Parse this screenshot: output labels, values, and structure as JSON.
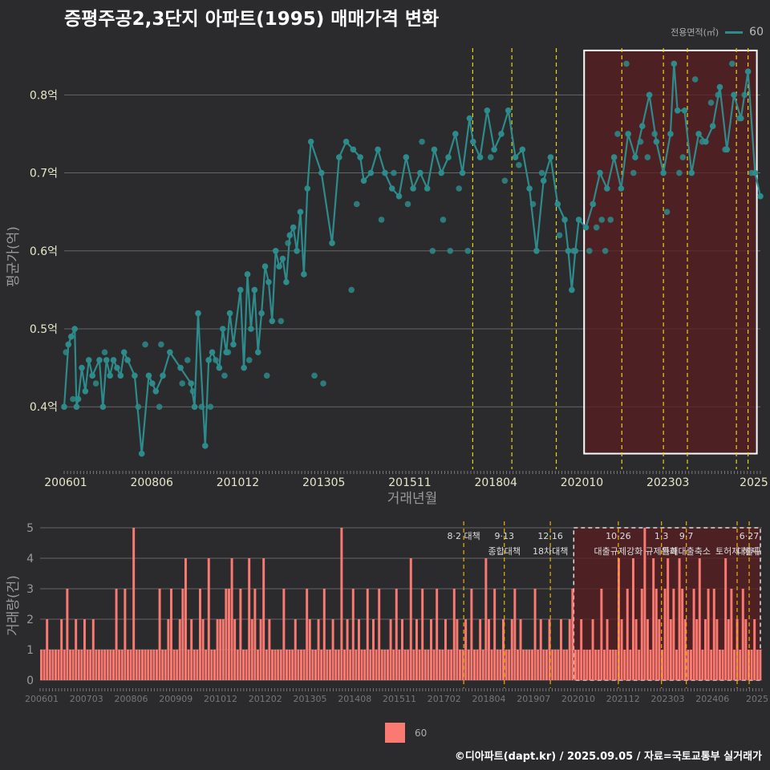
{
  "title": "증평주공2,3단지 아파트(1995) 매매가격 변화",
  "legend": {
    "title": "전용면적(㎡)",
    "label": "60"
  },
  "footer": "©디아파트(dapt.kr) / 2025.09.05 / 자료=국토교통부 실거래가",
  "colors": {
    "background": "#2b2b2d",
    "line": "#2e8b8b",
    "bar": "#fa7a72",
    "policy": "#e8d21a",
    "highlight": "#5a1f22"
  },
  "chart_data": [
    {
      "type": "line",
      "title": "증평주공2,3단지 아파트(1995) 매매가격 변화",
      "xlabel": "거래년월",
      "ylabel": "평균가(억)",
      "x_ticks": [
        "200601",
        "200806",
        "201012",
        "201305",
        "201511",
        "201804",
        "202010",
        "202303",
        "2025"
      ],
      "y_ticks": [
        "0.4억",
        "0.5억",
        "0.6억",
        "0.7억",
        "0.8억"
      ],
      "ylim": [
        0.32,
        0.86
      ],
      "x_range": [
        2006.0,
        2025.75
      ],
      "highlight_range": [
        2020.75,
        2025.65
      ],
      "policy_lines": [
        2017.59,
        2018.7,
        2019.96,
        2021.82,
        2023.0,
        2023.68,
        2025.07,
        2025.4
      ],
      "series": [
        {
          "name": "60",
          "x": [
            2006.0,
            2006.12,
            2006.2,
            2006.3,
            2006.35,
            2006.4,
            2006.5,
            2006.6,
            2006.7,
            2006.8,
            2007.0,
            2007.1,
            2007.2,
            2007.3,
            2007.4,
            2007.5,
            2007.6,
            2007.7,
            2007.8,
            2008.0,
            2008.2,
            2008.4,
            2008.5,
            2008.6,
            2008.8,
            2009.0,
            2009.3,
            2009.6,
            2009.7,
            2009.8,
            2010.0,
            2010.1,
            2010.2,
            2010.4,
            2010.5,
            2010.6,
            2010.7,
            2010.8,
            2011.0,
            2011.1,
            2011.2,
            2011.3,
            2011.4,
            2011.5,
            2011.6,
            2011.7,
            2011.8,
            2011.9,
            2012.0,
            2012.1,
            2012.2,
            2012.3,
            2012.4,
            2012.5,
            2012.6,
            2012.7,
            2012.8,
            2012.9,
            2013.0,
            2013.3,
            2013.6,
            2013.8,
            2014.0,
            2014.2,
            2014.4,
            2014.5,
            2014.7,
            2014.9,
            2015.1,
            2015.3,
            2015.5,
            2015.7,
            2015.9,
            2016.1,
            2016.3,
            2016.5,
            2016.7,
            2016.9,
            2017.1,
            2017.3,
            2017.5,
            2017.6,
            2017.8,
            2018.0,
            2018.2,
            2018.4,
            2018.6,
            2018.8,
            2019.0,
            2019.2,
            2019.4,
            2019.6,
            2019.8,
            2020.0,
            2020.2,
            2020.3,
            2020.4,
            2020.5,
            2020.6,
            2020.8,
            2021.0,
            2021.2,
            2021.4,
            2021.6,
            2021.8,
            2022.0,
            2022.2,
            2022.4,
            2022.6,
            2022.8,
            2023.0,
            2023.2,
            2023.3,
            2023.4,
            2023.6,
            2023.8,
            2024.0,
            2024.2,
            2024.4,
            2024.6,
            2024.8,
            2025.0,
            2025.2,
            2025.4,
            2025.6,
            2025.75
          ],
          "y": [
            0.4,
            0.48,
            0.49,
            0.5,
            0.4,
            0.41,
            0.45,
            0.42,
            0.46,
            0.44,
            0.46,
            0.4,
            0.46,
            0.44,
            0.46,
            0.45,
            0.44,
            0.47,
            0.46,
            0.44,
            0.34,
            0.44,
            0.43,
            0.42,
            0.44,
            0.47,
            0.45,
            0.43,
            0.4,
            0.52,
            0.35,
            0.46,
            0.47,
            0.45,
            0.5,
            0.47,
            0.52,
            0.48,
            0.55,
            0.45,
            0.57,
            0.5,
            0.55,
            0.47,
            0.52,
            0.58,
            0.56,
            0.51,
            0.6,
            0.58,
            0.59,
            0.56,
            0.62,
            0.63,
            0.6,
            0.65,
            0.57,
            0.68,
            0.74,
            0.7,
            0.61,
            0.72,
            0.74,
            0.73,
            0.72,
            0.69,
            0.7,
            0.73,
            0.7,
            0.68,
            0.67,
            0.72,
            0.68,
            0.7,
            0.68,
            0.73,
            0.7,
            0.72,
            0.75,
            0.7,
            0.77,
            0.74,
            0.72,
            0.78,
            0.73,
            0.75,
            0.78,
            0.72,
            0.73,
            0.68,
            0.6,
            0.69,
            0.72,
            0.66,
            0.64,
            0.6,
            0.55,
            0.6,
            0.64,
            0.63,
            0.66,
            0.7,
            0.68,
            0.72,
            0.68,
            0.75,
            0.72,
            0.76,
            0.8,
            0.74,
            0.7,
            0.75,
            0.84,
            0.78,
            0.78,
            0.7,
            0.75,
            0.74,
            0.76,
            0.81,
            0.73,
            0.8,
            0.77,
            0.83,
            0.7,
            0.67
          ]
        },
        {
          "name": "points",
          "x": [
            2006.05,
            2006.25,
            2006.9,
            2007.15,
            2008.1,
            2008.3,
            2008.7,
            2008.75,
            2009.35,
            2009.5,
            2009.65,
            2009.9,
            2010.15,
            2010.3,
            2010.55,
            2010.65,
            2011.25,
            2011.75,
            2012.15,
            2012.35,
            2013.1,
            2013.35,
            2014.15,
            2014.3,
            2015.0,
            2015.35,
            2015.75,
            2016.15,
            2016.45,
            2016.75,
            2016.95,
            2017.2,
            2017.45,
            2018.1,
            2018.5,
            2018.9,
            2019.3,
            2019.55,
            2020.05,
            2020.45,
            2020.9,
            2021.1,
            2021.25,
            2021.35,
            2021.5,
            2021.7,
            2021.95,
            2022.15,
            2022.35,
            2022.55,
            2022.75,
            2023.1,
            2023.45,
            2023.55,
            2023.9,
            2024.1,
            2024.35,
            2024.55,
            2024.75,
            2024.95,
            2025.15,
            2025.3,
            2025.5
          ],
          "y": [
            0.47,
            0.41,
            0.43,
            0.47,
            0.4,
            0.48,
            0.4,
            0.48,
            0.43,
            0.46,
            0.42,
            0.4,
            0.4,
            0.46,
            0.44,
            0.47,
            0.46,
            0.44,
            0.51,
            0.61,
            0.44,
            0.43,
            0.55,
            0.66,
            0.64,
            0.7,
            0.66,
            0.74,
            0.6,
            0.64,
            0.6,
            0.68,
            0.6,
            0.72,
            0.69,
            0.71,
            0.66,
            0.7,
            0.62,
            0.6,
            0.6,
            0.63,
            0.64,
            0.6,
            0.64,
            0.75,
            0.84,
            0.7,
            0.74,
            0.72,
            0.75,
            0.65,
            0.7,
            0.72,
            0.82,
            0.74,
            0.79,
            0.8,
            0.73,
            0.84,
            0.77,
            0.8,
            0.7
          ]
        }
      ]
    },
    {
      "type": "bar",
      "xlabel": "",
      "ylabel": "거래량(건)",
      "x_ticks": [
        "200601",
        "200703",
        "200806",
        "200909",
        "201012",
        "201202",
        "201305",
        "201408",
        "201511",
        "201702",
        "201804",
        "201907",
        "202010",
        "202112",
        "202303",
        "202406",
        "2025"
      ],
      "y_ticks": [
        "0",
        "1",
        "2",
        "3",
        "4",
        "5"
      ],
      "ylim": [
        0,
        5
      ],
      "x_range": [
        2006.0,
        2025.75
      ],
      "highlight_range": [
        2020.6,
        2025.75
      ],
      "values": [
        1,
        1,
        2,
        1,
        1,
        1,
        1,
        2,
        1,
        3,
        1,
        1,
        2,
        1,
        1,
        2,
        1,
        1,
        2,
        1,
        1,
        1,
        1,
        1,
        1,
        1,
        3,
        1,
        1,
        3,
        1,
        1,
        5,
        1,
        1,
        1,
        1,
        1,
        1,
        1,
        1,
        3,
        1,
        1,
        2,
        3,
        1,
        1,
        2,
        3,
        4,
        1,
        2,
        1,
        1,
        3,
        2,
        1,
        4,
        1,
        1,
        2,
        2,
        2,
        3,
        3,
        4,
        2,
        1,
        3,
        1,
        1,
        4,
        2,
        3,
        1,
        2,
        4,
        1,
        2,
        1,
        1,
        1,
        1,
        3,
        1,
        1,
        1,
        2,
        1,
        1,
        1,
        3,
        2,
        1,
        1,
        2,
        1,
        3,
        1,
        1,
        2,
        1,
        1,
        5,
        1,
        2,
        1,
        3,
        1,
        2,
        1,
        1,
        3,
        1,
        2,
        1,
        3,
        1,
        1,
        1,
        2,
        1,
        3,
        1,
        2,
        1,
        1,
        4,
        1,
        2,
        1,
        3,
        1,
        1,
        2,
        1,
        3,
        1,
        1,
        2,
        1,
        1,
        3,
        2,
        1,
        1,
        2,
        1,
        3,
        1,
        1,
        2,
        1,
        4,
        2,
        1,
        3,
        1,
        1,
        2,
        1,
        1,
        2,
        3,
        1,
        2,
        1,
        1,
        1,
        1,
        3,
        1,
        2,
        1,
        1,
        2,
        1,
        1,
        1,
        2,
        1,
        1,
        2,
        3,
        1,
        1,
        2,
        1,
        1,
        1,
        2,
        1,
        1,
        3,
        1,
        2,
        1,
        1,
        1,
        4,
        2,
        1,
        3,
        1,
        4,
        2,
        1,
        3,
        5,
        2,
        1,
        4,
        3,
        2,
        1,
        3,
        4,
        2,
        3,
        1,
        4,
        3,
        2,
        1,
        1,
        3,
        2,
        4,
        1,
        2,
        3,
        1,
        3,
        2,
        1,
        1,
        4,
        2,
        3,
        1,
        2,
        1,
        3,
        2,
        1,
        1,
        2,
        1,
        1
      ],
      "policy_annotations": [
        {
          "x": 2017.59,
          "label1": "8·2 대책",
          "label2": ""
        },
        {
          "x": 2018.7,
          "label1": "9·13",
          "label2": "종합대책"
        },
        {
          "x": 2019.96,
          "label1": "12·16",
          "label2": "18차대책"
        },
        {
          "x": 2021.82,
          "label1": "10·26",
          "label2": "대출규제강화"
        },
        {
          "x": 2023.0,
          "label1": "1·3",
          "label2": "규제완화"
        },
        {
          "x": 2023.68,
          "label1": "9·7",
          "label2": "특례대출축소"
        },
        {
          "x": 2025.07,
          "label1": "",
          "label2": "토허제 해제"
        },
        {
          "x": 2025.4,
          "label1": "6·27",
          "label2": "대출규"
        }
      ]
    }
  ]
}
